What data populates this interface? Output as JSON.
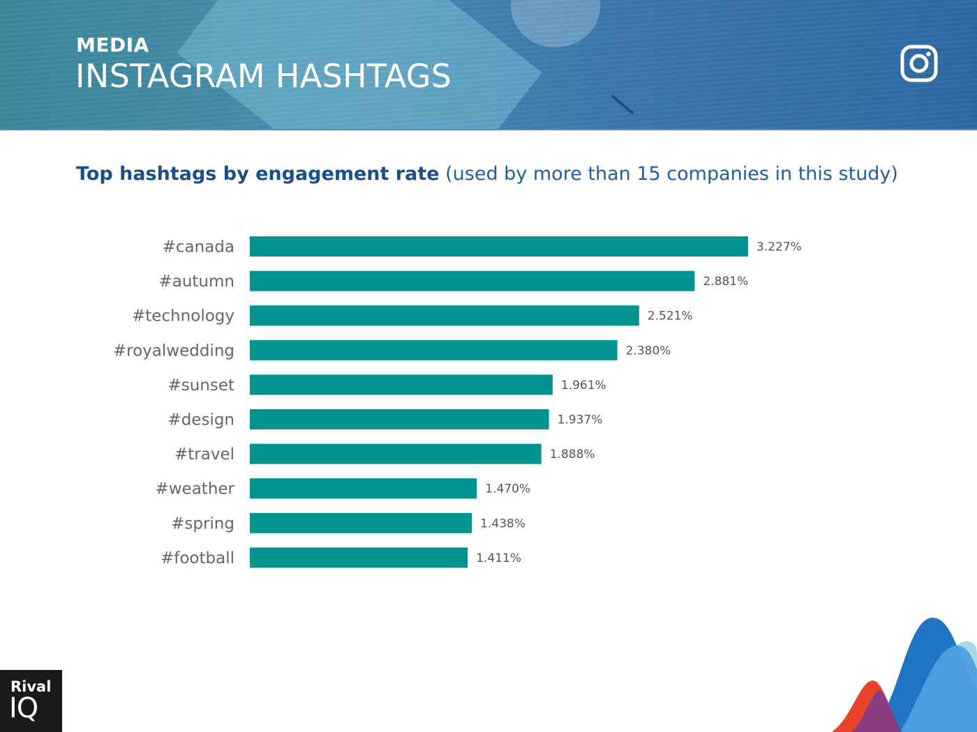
{
  "header": {
    "kicker": "MEDIA",
    "title": "INSTAGRAM HASHTAGS",
    "icon": "instagram-icon"
  },
  "subtitle": {
    "strong": "Top hashtags by engagement rate",
    "note": " (used by more than 15 companies in this study)"
  },
  "colors": {
    "bar": "#00928f",
    "label": "#666666",
    "value": "#555555",
    "title": "#1b4f8a"
  },
  "chart_data": {
    "type": "bar",
    "orientation": "horizontal",
    "title": "Top hashtags by engagement rate (used by more than 15 companies in this study)",
    "categories": [
      "#canada",
      "#autumn",
      "#technology",
      "#royalwedding",
      "#sunset",
      "#design",
      "#travel",
      "#weather",
      "#spring",
      "#football"
    ],
    "values": [
      3.227,
      2.881,
      2.521,
      2.38,
      1.961,
      1.937,
      1.888,
      1.47,
      1.438,
      1.411
    ],
    "value_labels": [
      "3.227%",
      "2.881%",
      "2.521%",
      "2.380%",
      "1.961%",
      "1.937%",
      "1.888%",
      "1.470%",
      "1.438%",
      "1.411%"
    ],
    "unit": "%",
    "xlim": [
      0,
      3.227
    ],
    "grid": false,
    "legend": "none"
  },
  "brand": {
    "line1": "Rival",
    "line2": "IQ"
  }
}
